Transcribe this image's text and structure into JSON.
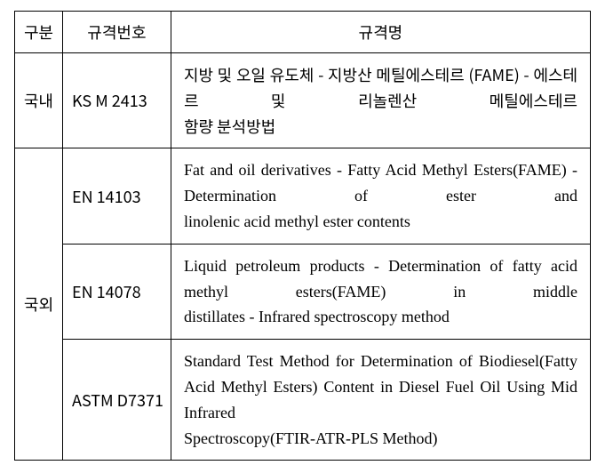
{
  "columns": {
    "c1": "구분",
    "c2": "규격번호",
    "c3": "규격명"
  },
  "rows": {
    "domestic": {
      "label": "국내",
      "items": [
        {
          "code": "KS M 2413",
          "desc_lines": [
            "지방 및 오일 유도체 - 지방산 메틸에스테르",
            "(FAME) - 에스테르 및 리놀렌산 메틸에스테르"
          ],
          "desc_last": "함량 분석방법",
          "lang": "ko"
        }
      ]
    },
    "foreign": {
      "label": "국외",
      "items": [
        {
          "code": "EN 14103",
          "desc_lines": [
            "Fat and oil derivatives - Fatty Acid Methyl",
            "Esters(FAME) - Determination of ester and"
          ],
          "desc_last": "linolenic acid methyl ester contents",
          "lang": "en"
        },
        {
          "code": "EN 14078",
          "desc_lines": [
            "Liquid petroleum products - Determination of",
            "fatty acid methyl esters(FAME) in middle"
          ],
          "desc_last": "distillates - Infrared spectroscopy method",
          "lang": "en"
        },
        {
          "code": "ASTM D7371",
          "desc_lines": [
            "Standard Test Method for Determination of",
            "Biodiesel(Fatty Acid Methyl Esters) Content in",
            "Diesel Fuel Oil Using Mid Infrared"
          ],
          "desc_last": "Spectroscopy(FTIR-ATR-PLS Method)",
          "lang": "en"
        }
      ]
    }
  },
  "style": {
    "border_color": "#000000",
    "background": "#ffffff",
    "font_size_pt": 14
  }
}
